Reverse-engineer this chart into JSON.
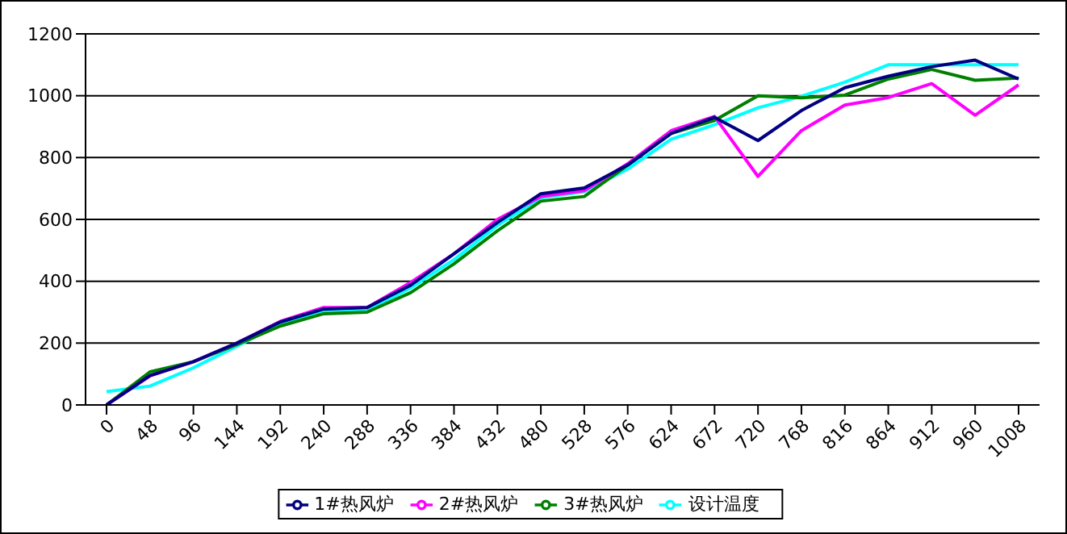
{
  "chart_data": {
    "type": "line",
    "categories": [
      "0",
      "48",
      "96",
      "144",
      "192",
      "240",
      "288",
      "336",
      "384",
      "432",
      "480",
      "528",
      "576",
      "624",
      "672",
      "720",
      "768",
      "816",
      "864",
      "912",
      "960",
      "1008"
    ],
    "series": [
      {
        "name": "1#热风炉",
        "color": "#000080",
        "values": [
          0,
          95,
          140,
          200,
          268,
          310,
          315,
          387,
          489,
          590,
          683,
          702,
          776,
          878,
          930,
          855,
          952,
          1026,
          1063,
          1094,
          1115,
          1054
        ]
      },
      {
        "name": "2#热风炉",
        "color": "#ff00ff",
        "values": [
          0,
          94,
          140,
          200,
          270,
          315,
          315,
          396,
          489,
          600,
          674,
          693,
          780,
          887,
          933,
          739,
          887,
          970,
          994,
          1039,
          937,
          1035
        ]
      },
      {
        "name": "3#热风炉",
        "color": "#008000",
        "values": [
          0,
          107,
          140,
          195,
          255,
          295,
          300,
          363,
          456,
          563,
          659,
          674,
          776,
          878,
          920,
          1000,
          993,
          1002,
          1054,
          1085,
          1050,
          1057
        ]
      },
      {
        "name": "设计温度",
        "color": "#00ffff",
        "values": [
          43,
          61,
          120,
          190,
          262,
          300,
          304,
          378,
          470,
          580,
          670,
          690,
          763,
          859,
          906,
          961,
          998,
          1044,
          1100,
          1100,
          1100,
          1100
        ]
      }
    ],
    "ylim": [
      0,
      1200
    ],
    "yticks": [
      0,
      200,
      400,
      600,
      800,
      1000,
      1200
    ],
    "grid": "y",
    "legend": "bottom",
    "marker": "none",
    "line_style": "solid"
  }
}
